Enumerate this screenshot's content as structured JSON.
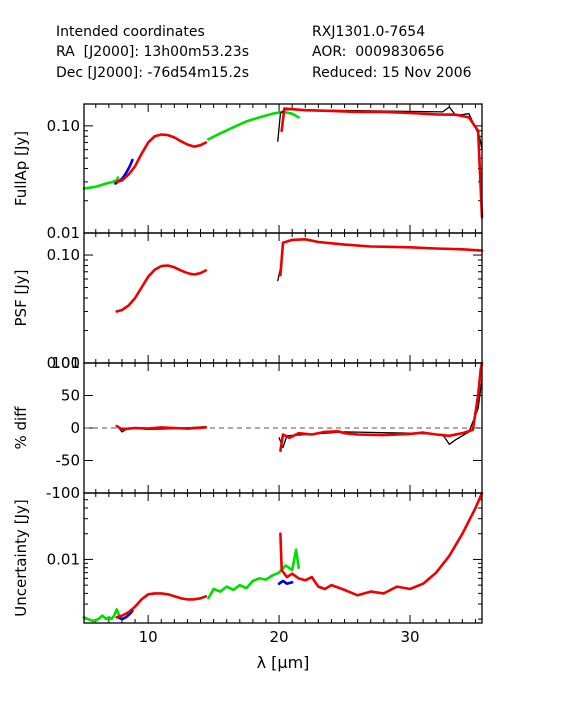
{
  "header": {
    "line1_left": "Intended coordinates",
    "line2_left": "RA  [J2000]: 13h00m53.23s",
    "line3_left": "Dec [J2000]: -76d54m15.2s",
    "line1_right": "RXJ1301.0-7654",
    "line2_right": "AOR:  0009830656",
    "line3_right": "Reduced: 15 Nov 2006"
  },
  "chart_data": [
    {
      "type": "line",
      "panel": "fullap",
      "ylabel": "FullAp [Jy]",
      "yscale": "log",
      "ylim": [
        0.01,
        0.16
      ],
      "xlim": [
        5.1,
        35.5
      ],
      "yticks": [
        {
          "v": 0.01,
          "label": "0.01"
        },
        {
          "v": 0.1,
          "label": "0.10"
        }
      ],
      "series": [
        {
          "color": "#00dd00",
          "points": [
            [
              5.1,
              0.026
            ],
            [
              6.0,
              0.027
            ],
            [
              6.8,
              0.029
            ],
            [
              7.3,
              0.03
            ],
            [
              7.6,
              0.031
            ],
            [
              7.7,
              0.033
            ]
          ]
        },
        {
          "color": "#0000dd",
          "points": [
            [
              7.5,
              0.029
            ],
            [
              8.0,
              0.032
            ],
            [
              8.3,
              0.036
            ],
            [
              8.6,
              0.042
            ],
            [
              8.8,
              0.048
            ]
          ]
        },
        {
          "color": "#00dd00",
          "points": [
            [
              14.6,
              0.075
            ],
            [
              15.5,
              0.085
            ],
            [
              16.5,
              0.097
            ],
            [
              17.5,
              0.11
            ],
            [
              18.5,
              0.12
            ],
            [
              19.5,
              0.13
            ],
            [
              20.3,
              0.135
            ],
            [
              21.0,
              0.13
            ],
            [
              21.5,
              0.12
            ]
          ]
        },
        {
          "color": "#000000",
          "points": [
            [
              19.9,
              0.072
            ],
            [
              20.1,
              0.13
            ],
            [
              20.4,
              0.142
            ],
            [
              32.5,
              0.135
            ],
            [
              33.0,
              0.15
            ],
            [
              33.5,
              0.125
            ],
            [
              34.5,
              0.13
            ],
            [
              35.3,
              0.08
            ],
            [
              35.5,
              0.06
            ]
          ]
        },
        {
          "color": "#ee0000",
          "points": [
            [
              7.6,
              0.03
            ],
            [
              8.0,
              0.031
            ],
            [
              8.5,
              0.035
            ],
            [
              9.0,
              0.042
            ],
            [
              9.5,
              0.055
            ],
            [
              10.0,
              0.07
            ],
            [
              10.5,
              0.08
            ],
            [
              11.0,
              0.083
            ],
            [
              11.5,
              0.082
            ],
            [
              12.0,
              0.078
            ],
            [
              12.5,
              0.072
            ],
            [
              13.0,
              0.067
            ],
            [
              13.5,
              0.064
            ],
            [
              14.0,
              0.066
            ],
            [
              14.4,
              0.07
            ]
          ]
        },
        {
          "color": "#ee0000",
          "points": [
            [
              20.2,
              0.09
            ],
            [
              20.4,
              0.145
            ],
            [
              22.0,
              0.14
            ],
            [
              24.0,
              0.138
            ],
            [
              26.0,
              0.135
            ],
            [
              28.0,
              0.135
            ],
            [
              30.0,
              0.132
            ],
            [
              32.0,
              0.128
            ],
            [
              33.5,
              0.127
            ],
            [
              34.5,
              0.12
            ],
            [
              35.2,
              0.09
            ],
            [
              35.5,
              0.014
            ]
          ]
        }
      ]
    },
    {
      "type": "line",
      "panel": "psf",
      "ylabel": "PSF [Jy]",
      "yscale": "log",
      "ylim": [
        0.01,
        0.16
      ],
      "xlim": [
        5.1,
        35.5
      ],
      "yticks": [
        {
          "v": 0.01,
          "label": "0.01"
        },
        {
          "v": 0.1,
          "label": "0.10"
        }
      ],
      "series": [
        {
          "color": "#000000",
          "points": [
            [
              19.9,
              0.058
            ],
            [
              20.1,
              0.075
            ]
          ]
        },
        {
          "color": "#ee0000",
          "points": [
            [
              7.6,
              0.03
            ],
            [
              8.0,
              0.031
            ],
            [
              8.5,
              0.034
            ],
            [
              9.0,
              0.04
            ],
            [
              9.5,
              0.05
            ],
            [
              10.0,
              0.063
            ],
            [
              10.5,
              0.073
            ],
            [
              11.0,
              0.079
            ],
            [
              11.5,
              0.08
            ],
            [
              12.0,
              0.077
            ],
            [
              12.5,
              0.072
            ],
            [
              13.0,
              0.068
            ],
            [
              13.5,
              0.066
            ],
            [
              14.0,
              0.068
            ],
            [
              14.4,
              0.072
            ]
          ]
        },
        {
          "color": "#ee0000",
          "points": [
            [
              20.1,
              0.065
            ],
            [
              20.3,
              0.13
            ],
            [
              21.0,
              0.138
            ],
            [
              22.0,
              0.14
            ],
            [
              23.0,
              0.132
            ],
            [
              25.0,
              0.125
            ],
            [
              27.0,
              0.12
            ],
            [
              30.0,
              0.118
            ],
            [
              32.0,
              0.115
            ],
            [
              34.0,
              0.113
            ],
            [
              35.5,
              0.11
            ]
          ]
        }
      ]
    },
    {
      "type": "line",
      "panel": "pctdiff",
      "ylabel": "% diff",
      "yscale": "linear",
      "ylim": [
        -100,
        100
      ],
      "xlim": [
        5.1,
        35.5
      ],
      "reference_line": 0,
      "yticks": [
        {
          "v": -100,
          "label": "-100"
        },
        {
          "v": -50,
          "label": "-50"
        },
        {
          "v": 0,
          "label": "0"
        },
        {
          "v": 50,
          "label": "50"
        },
        {
          "v": 100,
          "label": "100"
        }
      ],
      "series": [
        {
          "color": "#000000",
          "points": [
            [
              7.6,
              4
            ],
            [
              8.0,
              -6
            ],
            [
              8.5,
              0
            ],
            [
              10.0,
              -2
            ],
            [
              12.0,
              -1
            ],
            [
              14.4,
              2
            ]
          ]
        },
        {
          "color": "#000000",
          "points": [
            [
              20.0,
              -15
            ],
            [
              20.3,
              -30
            ],
            [
              20.6,
              -12
            ],
            [
              25.0,
              -6
            ],
            [
              30.0,
              -8
            ],
            [
              32.5,
              -10
            ],
            [
              33.0,
              -25
            ],
            [
              33.5,
              -18
            ],
            [
              34.5,
              -6
            ],
            [
              35.2,
              30
            ],
            [
              35.5,
              75
            ]
          ]
        },
        {
          "color": "#ee0000",
          "points": [
            [
              7.6,
              3
            ],
            [
              8.0,
              -2
            ],
            [
              9.0,
              0
            ],
            [
              10.0,
              -1
            ],
            [
              11.0,
              1
            ],
            [
              12.0,
              0
            ],
            [
              13.0,
              -1
            ],
            [
              14.4,
              1
            ]
          ]
        },
        {
          "color": "#ee0000",
          "points": [
            [
              20.1,
              -35
            ],
            [
              20.3,
              -10
            ],
            [
              20.8,
              -15
            ],
            [
              21.5,
              -8
            ],
            [
              22.5,
              -10
            ],
            [
              23.5,
              -6
            ],
            [
              24.5,
              -5
            ],
            [
              25.0,
              -8
            ],
            [
              26.0,
              -10
            ],
            [
              28.0,
              -11
            ],
            [
              30.0,
              -9
            ],
            [
              31.0,
              -7
            ],
            [
              32.0,
              -10
            ],
            [
              33.0,
              -12
            ],
            [
              34.0,
              -8
            ],
            [
              34.8,
              -3
            ],
            [
              35.2,
              50
            ],
            [
              35.4,
              90
            ],
            [
              35.5,
              100
            ]
          ]
        }
      ]
    },
    {
      "type": "line",
      "panel": "uncertainty",
      "ylabel": "Uncertainty [Jy]",
      "yscale": "log",
      "ylim": [
        0.0018,
        0.06
      ],
      "xlim": [
        5.1,
        35.5
      ],
      "xlabel": "λ [μm]",
      "xticks": [
        {
          "v": 10,
          "label": "10"
        },
        {
          "v": 20,
          "label": "20"
        },
        {
          "v": 30,
          "label": "30"
        }
      ],
      "yticks": [
        {
          "v": 0.01,
          "label": "0.01"
        }
      ],
      "series": [
        {
          "color": "#00dd00",
          "points": [
            [
              5.1,
              0.0021
            ],
            [
              5.4,
              0.002
            ],
            [
              5.8,
              0.0019
            ],
            [
              6.2,
              0.002
            ],
            [
              6.5,
              0.0022
            ],
            [
              6.8,
              0.002
            ],
            [
              7.0,
              0.0021
            ],
            [
              7.2,
              0.002
            ],
            [
              7.4,
              0.0022
            ],
            [
              7.6,
              0.0026
            ],
            [
              7.8,
              0.0022
            ]
          ]
        },
        {
          "color": "#0000dd",
          "points": [
            [
              7.7,
              0.0021
            ],
            [
              8.0,
              0.002
            ],
            [
              8.3,
              0.0021
            ],
            [
              8.6,
              0.0023
            ],
            [
              8.8,
              0.0025
            ]
          ]
        },
        {
          "color": "#00dd00",
          "points": [
            [
              14.6,
              0.0035
            ],
            [
              15.0,
              0.0045
            ],
            [
              15.5,
              0.0042
            ],
            [
              16.0,
              0.0048
            ],
            [
              16.5,
              0.0044
            ],
            [
              17.0,
              0.005
            ],
            [
              17.5,
              0.0046
            ],
            [
              18.0,
              0.0056
            ],
            [
              18.5,
              0.006
            ],
            [
              19.0,
              0.0058
            ],
            [
              19.5,
              0.0065
            ],
            [
              20.0,
              0.007
            ],
            [
              20.5,
              0.0085
            ],
            [
              21.0,
              0.0075
            ],
            [
              21.3,
              0.013
            ],
            [
              21.5,
              0.008
            ]
          ]
        },
        {
          "color": "#0000dd",
          "points": [
            [
              20.0,
              0.0052
            ],
            [
              20.3,
              0.0056
            ],
            [
              20.6,
              0.0052
            ],
            [
              21.0,
              0.0054
            ]
          ]
        },
        {
          "color": "#ee0000",
          "points": [
            [
              7.6,
              0.0021
            ],
            [
              8.0,
              0.0022
            ],
            [
              8.5,
              0.0024
            ],
            [
              9.0,
              0.0028
            ],
            [
              9.5,
              0.0034
            ],
            [
              10.0,
              0.0039
            ],
            [
              10.5,
              0.004
            ],
            [
              11.0,
              0.004
            ],
            [
              11.5,
              0.0039
            ],
            [
              12.0,
              0.0037
            ],
            [
              12.5,
              0.0035
            ],
            [
              13.0,
              0.0034
            ],
            [
              13.5,
              0.0034
            ],
            [
              14.0,
              0.0035
            ],
            [
              14.4,
              0.0037
            ]
          ]
        },
        {
          "color": "#ee0000",
          "points": [
            [
              20.1,
              0.02
            ],
            [
              20.2,
              0.0075
            ],
            [
              20.6,
              0.0062
            ],
            [
              21.0,
              0.0068
            ],
            [
              21.5,
              0.006
            ],
            [
              22.0,
              0.0057
            ],
            [
              22.5,
              0.0062
            ],
            [
              23.0,
              0.0048
            ],
            [
              23.5,
              0.0045
            ],
            [
              24.0,
              0.005
            ],
            [
              25.0,
              0.0044
            ],
            [
              26.0,
              0.0038
            ],
            [
              27.0,
              0.0042
            ],
            [
              28.0,
              0.004
            ],
            [
              29.0,
              0.0048
            ],
            [
              30.0,
              0.0045
            ],
            [
              31.0,
              0.0052
            ],
            [
              32.0,
              0.007
            ],
            [
              33.0,
              0.011
            ],
            [
              34.0,
              0.02
            ],
            [
              35.0,
              0.04
            ],
            [
              35.5,
              0.06
            ]
          ]
        }
      ]
    }
  ]
}
